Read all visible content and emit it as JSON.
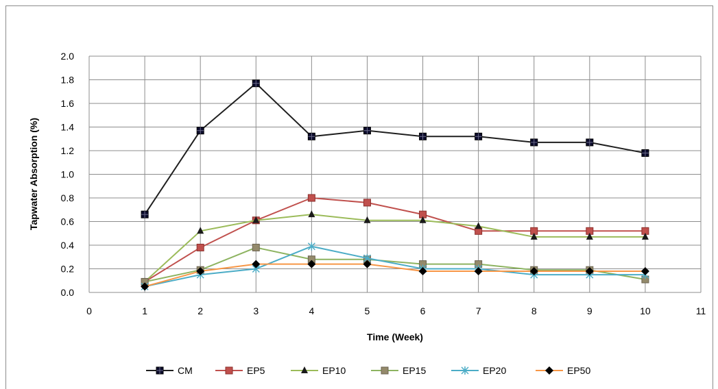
{
  "chart_data": {
    "type": "line",
    "title": "",
    "xlabel": "Time (Week)",
    "ylabel": "Tapwater Absorption (%)",
    "xlim": [
      0,
      11
    ],
    "ylim": [
      0,
      2.0
    ],
    "x_ticks": [
      "0",
      "1",
      "2",
      "3",
      "4",
      "5",
      "6",
      "7",
      "8",
      "9",
      "10",
      "11"
    ],
    "y_ticks": [
      "0.0",
      "0.2",
      "0.4",
      "0.6",
      "0.8",
      "1.0",
      "1.2",
      "1.4",
      "1.6",
      "1.8",
      "2.0"
    ],
    "grid": "horizontal and vertical",
    "legend_position": "bottom",
    "x": [
      1,
      2,
      3,
      4,
      5,
      6,
      7,
      8,
      9,
      10
    ],
    "series": [
      {
        "name": "CM",
        "color": "#1f1f1f",
        "marker": "square-cross",
        "values": [
          0.66,
          1.37,
          1.77,
          1.32,
          1.37,
          1.32,
          1.32,
          1.27,
          1.27,
          1.18
        ]
      },
      {
        "name": "EP5",
        "color": "#c0504d",
        "marker": "square",
        "values": [
          0.09,
          0.38,
          0.61,
          0.8,
          0.76,
          0.66,
          0.52,
          0.52,
          0.52,
          0.52
        ]
      },
      {
        "name": "EP10",
        "color": "#9bbb59",
        "marker": "triangle",
        "values": [
          0.09,
          0.52,
          0.61,
          0.66,
          0.61,
          0.61,
          0.56,
          0.47,
          0.47,
          0.47
        ]
      },
      {
        "name": "EP15",
        "color": "#8db360",
        "marker": "square-gray",
        "values": [
          0.09,
          0.19,
          0.38,
          0.28,
          0.28,
          0.24,
          0.24,
          0.19,
          0.19,
          0.11
        ]
      },
      {
        "name": "EP20",
        "color": "#4bacc6",
        "marker": "star",
        "values": [
          0.05,
          0.15,
          0.2,
          0.39,
          0.29,
          0.2,
          0.2,
          0.15,
          0.15,
          0.15
        ]
      },
      {
        "name": "EP50",
        "color": "#f79646",
        "marker": "diamond",
        "values": [
          0.05,
          0.18,
          0.24,
          0.24,
          0.24,
          0.18,
          0.18,
          0.18,
          0.18,
          0.18
        ]
      }
    ]
  }
}
